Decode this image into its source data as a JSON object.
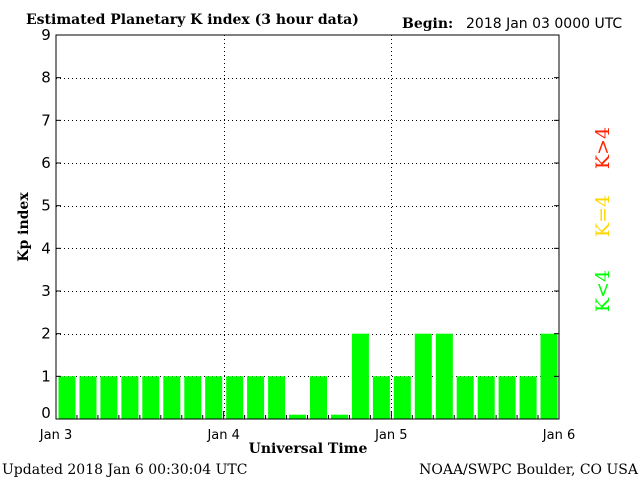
{
  "header": {
    "title": "Estimated Planetary K index (3 hour data)",
    "begin_label": "Begin:",
    "begin_value": "2018 Jan 03 0000 UTC"
  },
  "footer": {
    "updated": "Updated 2018 Jan  6 00:30:04 UTC",
    "source": "NOAA/SWPC Boulder, CO USA"
  },
  "legend": {
    "high": "K>4",
    "mid": "K=4",
    "low": "K<4"
  },
  "colors": {
    "low": "#00ff00",
    "mid": "#ffd700",
    "high": "#ff2200",
    "grid": "#000000"
  },
  "chart_data": {
    "type": "bar",
    "title": "Estimated Planetary K index (3 hour data)",
    "xlabel": "Universal Time",
    "ylabel": "Kp index",
    "ylim": [
      0,
      9
    ],
    "yticks": [
      0,
      1,
      2,
      3,
      4,
      5,
      6,
      7,
      8,
      9
    ],
    "xtick_labels": [
      "Jan 3",
      "Jan 4",
      "Jan 5",
      "Jan 6"
    ],
    "bins_per_day": 8,
    "grid": true,
    "values": [
      1,
      1,
      1,
      1,
      1,
      1,
      1,
      1,
      1,
      1,
      1,
      0.1,
      1,
      0.1,
      2,
      1,
      1,
      2,
      2,
      1,
      1,
      1,
      1,
      2
    ]
  }
}
